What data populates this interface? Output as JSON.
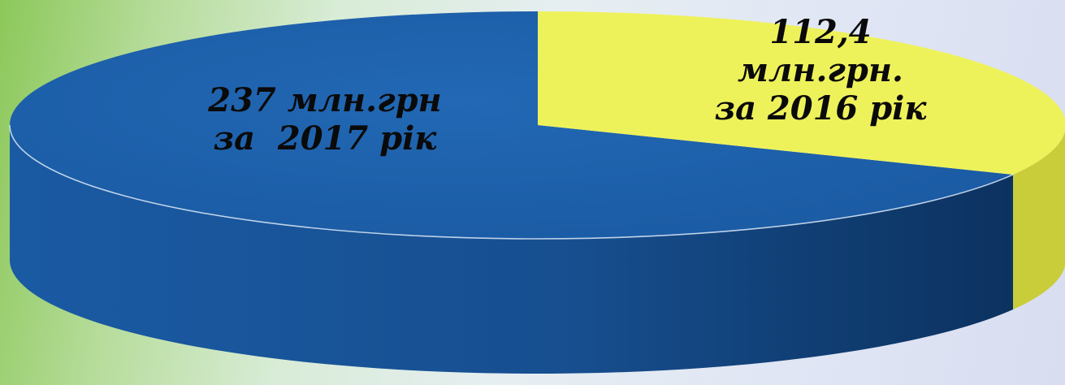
{
  "chart_data": {
    "type": "pie",
    "style": "3d",
    "title": "",
    "slices": [
      {
        "value": 237,
        "label_lines": [
          "237 млн.грн",
          "за  2017 рік"
        ],
        "color": "#1b5da8",
        "side_color": "#0f3f78"
      },
      {
        "value": 112.4,
        "label_lines": [
          "112,4",
          "млн.грн.",
          "за 2016 рік"
        ],
        "color": "#eef25a",
        "side_color": "#c9cd3a"
      }
    ]
  }
}
